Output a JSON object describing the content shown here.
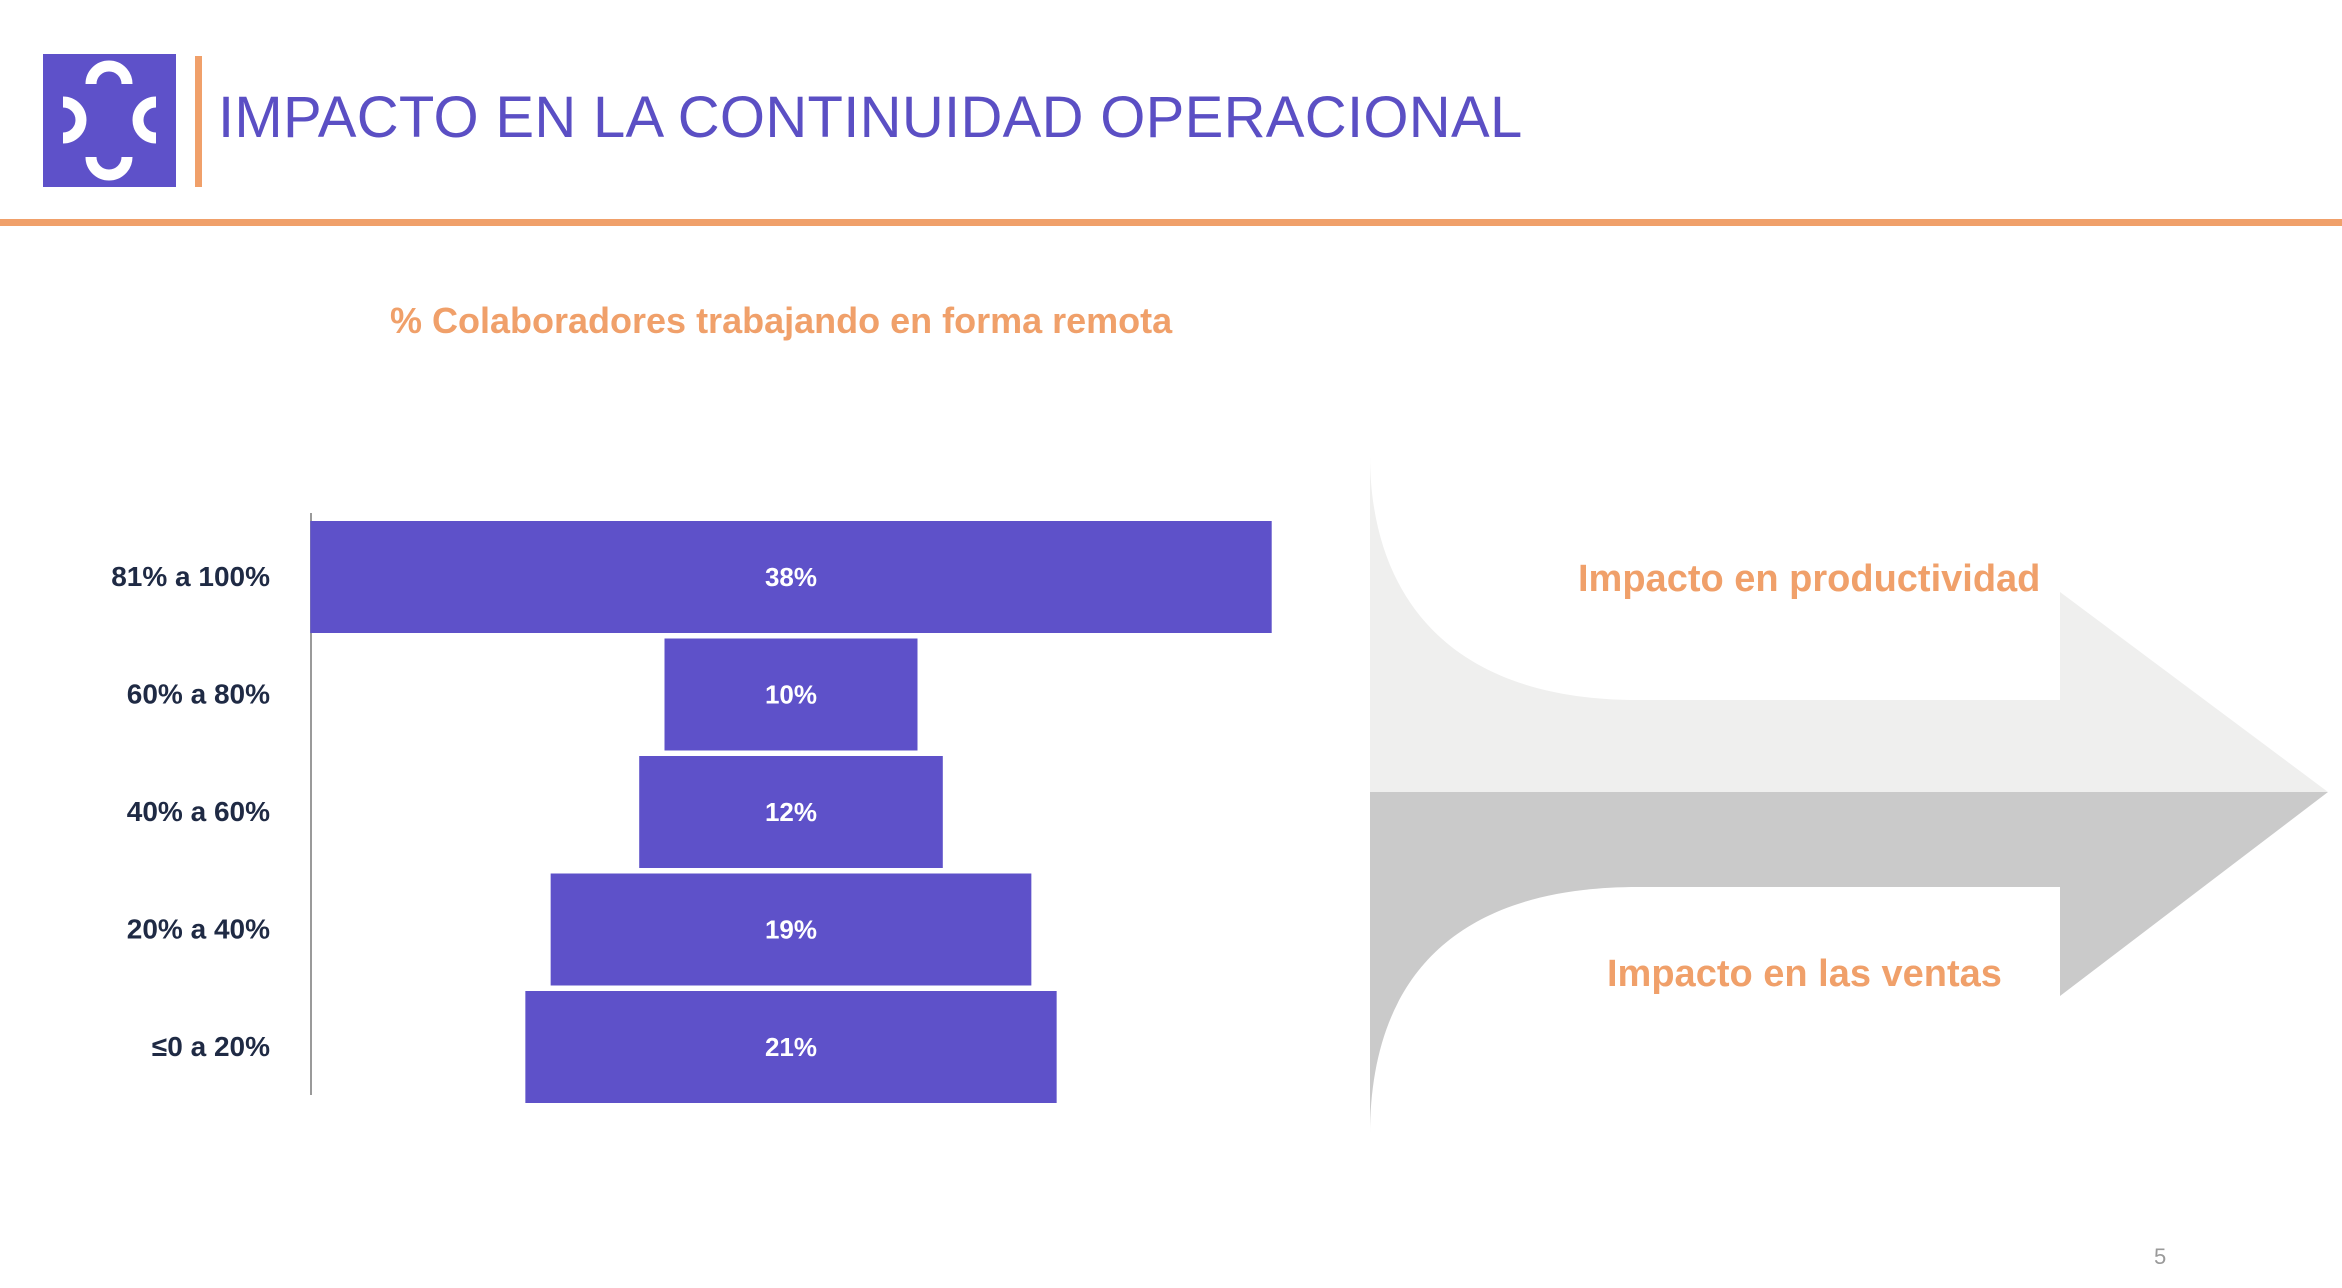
{
  "header": {
    "title": "IMPACTO EN LA CONTINUIDAD OPERACIONAL",
    "logo_icon": "scatter-arcs-logo-icon"
  },
  "colors": {
    "accent_purple": "#5e51c9",
    "accent_orange": "#f0a06a",
    "title_purple": "#5b4fc4",
    "arrow_light": "#efefee",
    "arrow_dark": "#cacaca",
    "label_dark": "#1f2a44"
  },
  "chart_data": {
    "type": "bar",
    "orientation": "horizontal-centered-funnel",
    "title": "% Colaboradores trabajando en forma remota",
    "categories": [
      "81% a 100%",
      "60% a 80%",
      "40% a 60%",
      "20% a 40%",
      "≤0 a 20%"
    ],
    "values": [
      38,
      10,
      12,
      19,
      21
    ],
    "value_labels": [
      "38%",
      "10%",
      "12%",
      "19%",
      "21%"
    ],
    "unit": "%",
    "grid": false,
    "legend": "none"
  },
  "arrows": {
    "top_label": "Impacto en productividad",
    "bottom_label": "Impacto en las ventas"
  },
  "page_number": "5"
}
